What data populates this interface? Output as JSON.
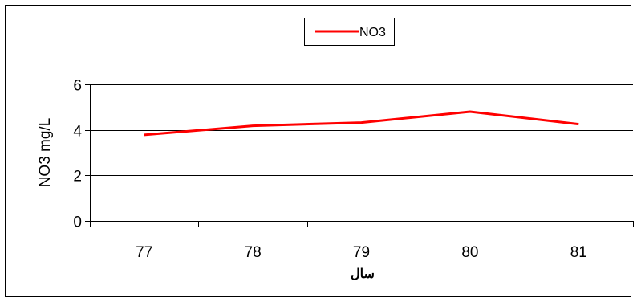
{
  "chart_data": {
    "type": "line",
    "categories": [
      "77",
      "78",
      "79",
      "80",
      "81"
    ],
    "series": [
      {
        "name": "NO3",
        "values": [
          3.78,
          4.18,
          4.32,
          4.8,
          4.25
        ],
        "color": "#ff0000"
      }
    ],
    "ylabel": "NO3  mg/L",
    "xlabel": "سال",
    "ylim": [
      0,
      6
    ],
    "y_ticks": [
      "0",
      "2",
      "4",
      "6"
    ],
    "grid": true,
    "legend": "top-center"
  }
}
